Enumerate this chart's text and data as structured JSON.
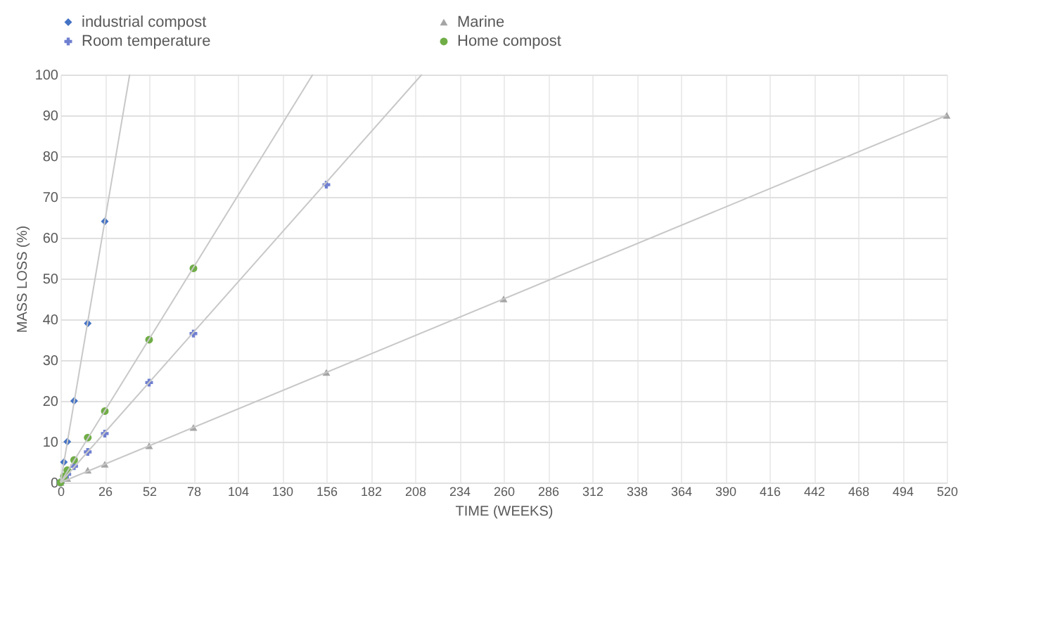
{
  "chart_data": {
    "type": "scatter",
    "xlabel": "TIME (WEEKS)",
    "ylabel": "MASS LOSS (%)",
    "xlim": [
      0,
      520
    ],
    "xticks": [
      0,
      26,
      52,
      78,
      104,
      130,
      156,
      182,
      208,
      234,
      260,
      286,
      312,
      338,
      364,
      390,
      416,
      442,
      468,
      494,
      520
    ],
    "ylim": [
      0,
      100
    ],
    "yticks": [
      0,
      10,
      20,
      30,
      40,
      50,
      60,
      70,
      80,
      90,
      100
    ],
    "grid": true,
    "legend": "top",
    "series": [
      {
        "name": "industrial compost",
        "color": "#4472c4",
        "marker": "diamond",
        "x": [
          0,
          2,
          4,
          8,
          16,
          26
        ],
        "values": [
          0,
          5,
          10,
          20,
          39,
          64
        ]
      },
      {
        "name": "Marine",
        "color": "#a5a5a5",
        "marker": "triangle",
        "x": [
          0,
          4,
          16,
          26,
          52,
          78,
          156,
          260,
          520
        ],
        "values": [
          0,
          1,
          3,
          4.5,
          9,
          13.5,
          27,
          45,
          90
        ]
      },
      {
        "name": "Room temperature",
        "color": "#6f7fd0",
        "marker": "cross",
        "x": [
          0,
          4,
          8,
          16,
          26,
          52,
          78,
          156
        ],
        "values": [
          0,
          2,
          4,
          7.5,
          12,
          24.5,
          36.5,
          73
        ]
      },
      {
        "name": "Home compost",
        "color": "#70ad47",
        "marker": "circle",
        "x": [
          0,
          2,
          4,
          8,
          16,
          26,
          52,
          78
        ],
        "values": [
          0,
          1.5,
          3,
          5.5,
          11,
          17.5,
          35,
          52.5
        ]
      },
      {
        "type": "line",
        "color": "#c8c8c8",
        "marker": "none",
        "x": [
          0,
          40.6
        ],
        "values": [
          0,
          100
        ]
      },
      {
        "type": "line",
        "color": "#c8c8c8",
        "marker": "none",
        "x": [
          0,
          148
        ],
        "values": [
          0,
          100
        ]
      },
      {
        "type": "line",
        "color": "#c8c8c8",
        "marker": "none",
        "x": [
          0,
          212
        ],
        "values": [
          0,
          100
        ]
      },
      {
        "type": "line",
        "color": "#c8c8c8",
        "marker": "none",
        "x": [
          0,
          520
        ],
        "values": [
          0,
          90
        ]
      }
    ]
  }
}
